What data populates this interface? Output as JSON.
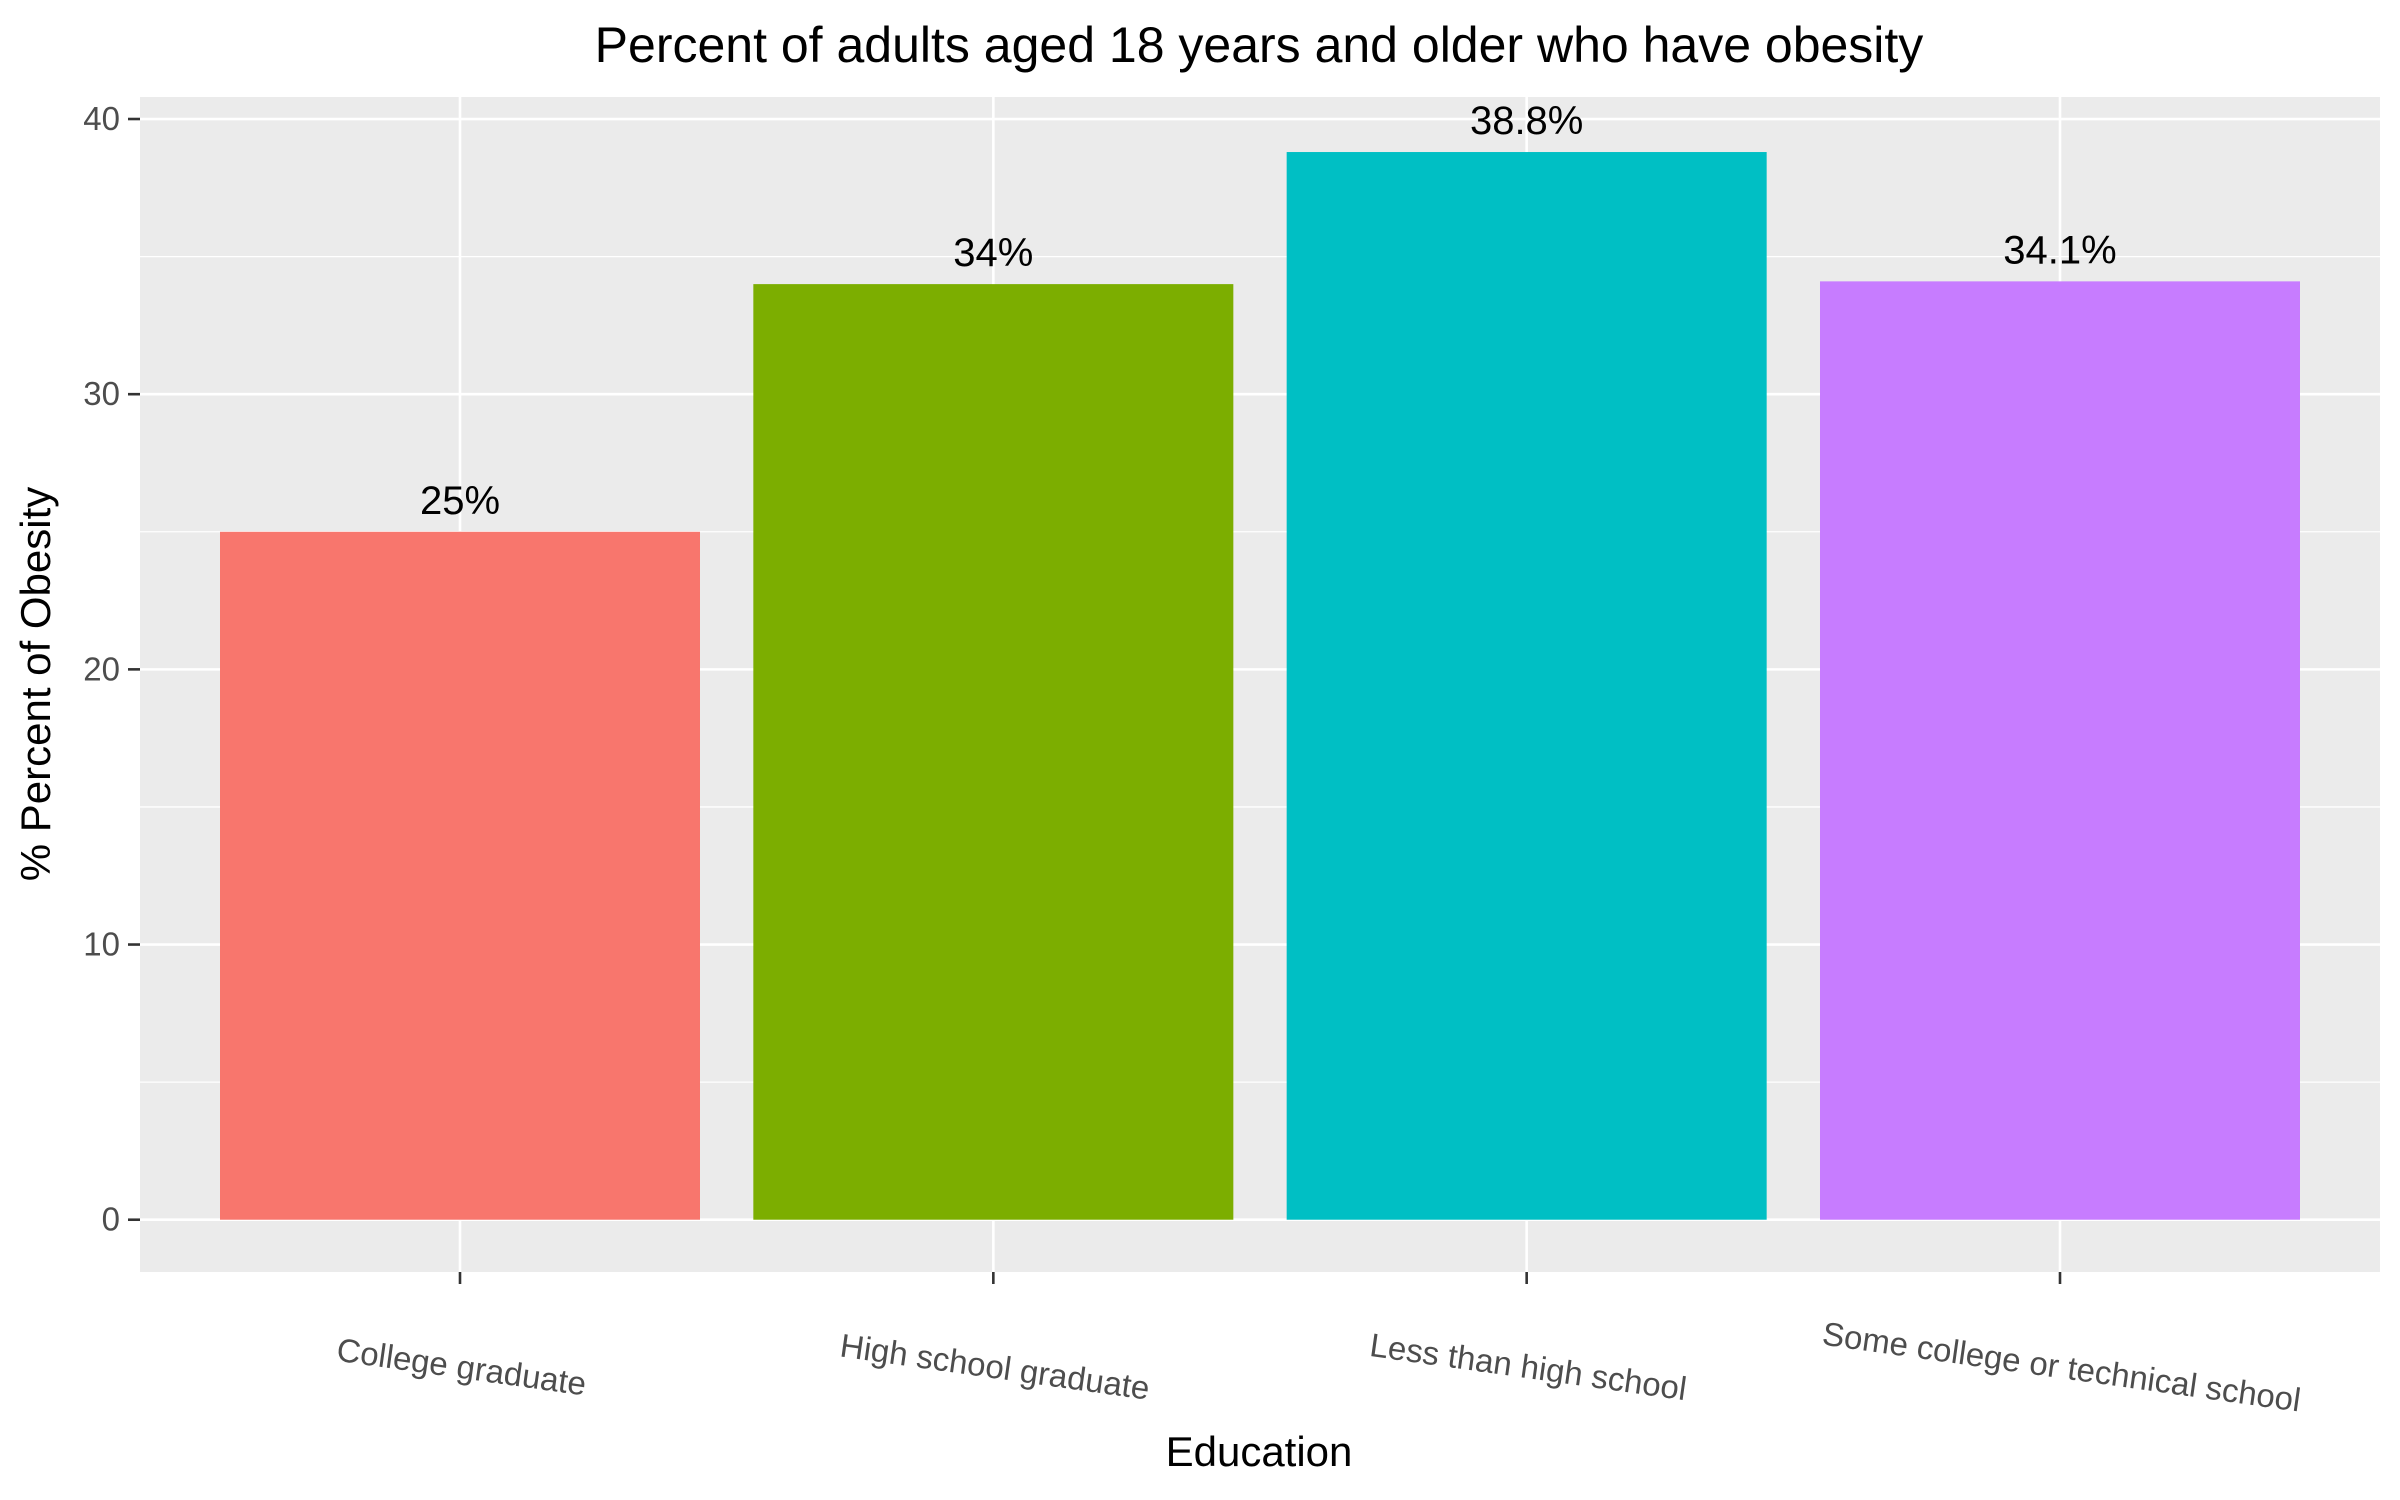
{
  "chart_data": {
    "type": "bar",
    "title": "Percent of adults aged 18 years and older who have obesity",
    "xlabel": "Education",
    "ylabel": "% Percent of Obesity",
    "categories": [
      "College graduate",
      "High school graduate",
      "Less than high school",
      "Some college or technical school"
    ],
    "values": [
      25,
      34,
      38.8,
      34.1
    ],
    "value_labels": [
      "25%",
      "34%",
      "38.8%",
      "34.1%"
    ],
    "colors": [
      "#F8766D",
      "#7CAE00",
      "#00BFC4",
      "#C77CFF"
    ],
    "ylim": [
      -1.9,
      40.8
    ],
    "yticks": [
      0,
      10,
      20,
      30,
      40
    ],
    "ytick_labels": [
      "0",
      "10",
      "20",
      "30",
      "40"
    ],
    "grid": true,
    "legend": "none"
  }
}
